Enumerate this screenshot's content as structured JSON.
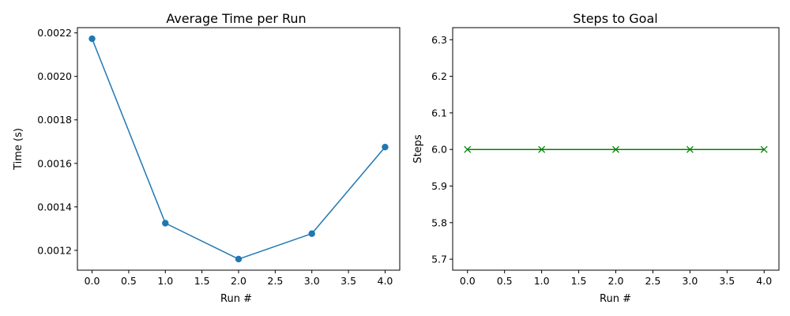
{
  "chart_data": [
    {
      "type": "line",
      "title": "Average Time per Run",
      "xlabel": "Run #",
      "ylabel": "Time (s)",
      "x": [
        0,
        1,
        2,
        3,
        4
      ],
      "series": [
        {
          "values": [
            0.002173,
            0.001325,
            0.00116,
            0.001277,
            0.001675
          ],
          "color": "#1f77b4",
          "marker": "circle"
        }
      ],
      "xlim": [
        -0.2,
        4.2
      ],
      "ylim": [
        0.0011089,
        0.0022241
      ],
      "xticks": [
        0,
        0.5,
        1,
        1.5,
        2,
        2.5,
        3,
        3.5,
        4
      ],
      "xtick_labels": [
        "0.0",
        "0.5",
        "1.0",
        "1.5",
        "2.0",
        "2.5",
        "3.0",
        "3.5",
        "4.0"
      ],
      "yticks": [
        0.0012,
        0.0014,
        0.0016,
        0.0018,
        0.002,
        0.0022
      ],
      "ytick_labels": [
        "0.0012",
        "0.0014",
        "0.0016",
        "0.0018",
        "0.0020",
        "0.0022"
      ],
      "grid": false
    },
    {
      "type": "line",
      "title": "Steps to Goal",
      "xlabel": "Run #",
      "ylabel": "Steps",
      "x": [
        0,
        1,
        2,
        3,
        4
      ],
      "series": [
        {
          "values": [
            6,
            6,
            6,
            6,
            6
          ],
          "color": "#008000",
          "marker": "x"
        }
      ],
      "xlim": [
        -0.2,
        4.2
      ],
      "ylim": [
        5.67,
        6.333
      ],
      "xticks": [
        0,
        0.5,
        1,
        1.5,
        2,
        2.5,
        3,
        3.5,
        4
      ],
      "xtick_labels": [
        "0.0",
        "0.5",
        "1.0",
        "1.5",
        "2.0",
        "2.5",
        "3.0",
        "3.5",
        "4.0"
      ],
      "yticks": [
        5.7,
        5.8,
        5.9,
        6.0,
        6.1,
        6.2,
        6.3
      ],
      "ytick_labels": [
        "5.7",
        "5.8",
        "5.9",
        "6.0",
        "6.1",
        "6.2",
        "6.3"
      ],
      "grid": false
    }
  ]
}
